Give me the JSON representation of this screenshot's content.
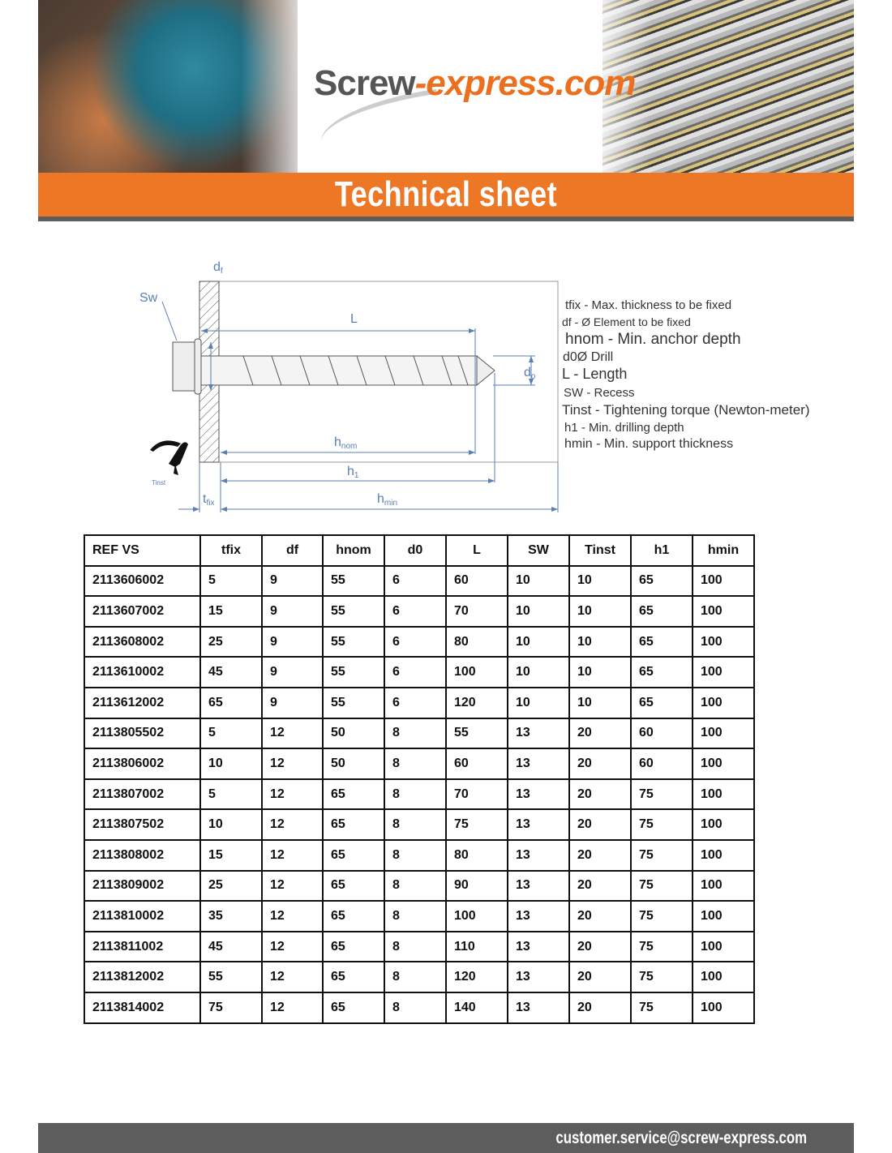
{
  "header": {
    "logo_main": "Screw",
    "logo_accent": "-express.com",
    "title": "Technical sheet"
  },
  "diagram": {
    "labels": {
      "df": "d",
      "df_sub": "f",
      "sw": "Sw",
      "L": "L",
      "d0": "d",
      "d0_sub": "o",
      "hnom": "h",
      "hnom_sub": "nom",
      "h1": "h",
      "h1_sub": "1",
      "hmin": "h",
      "hmin_sub": "min",
      "tfix": "t",
      "tfix_sub": "fix",
      "tinst": "Tinst"
    },
    "icons": [
      "torque-wrench-icon"
    ]
  },
  "legend": [
    "tfix - Max. thickness to be fixed",
    "df - Ø Element to be fixed",
    "hnom - Min. anchor depth",
    "d0Ø Drill",
    "L - Length",
    "SW - Recess",
    "Tinst - Tightening torque (Newton-meter)",
    "h1 - Min. drilling depth",
    "hmin - Min. support thickness"
  ],
  "table": {
    "headers": [
      "REF VS",
      "tfix",
      "df",
      "hnom",
      "d0",
      "L",
      "SW",
      "Tinst",
      "h1",
      "hmin"
    ],
    "rows": [
      [
        "2113606002",
        "5",
        "9",
        "55",
        "6",
        "60",
        "10",
        "10",
        "65",
        "100"
      ],
      [
        "2113607002",
        "15",
        "9",
        "55",
        "6",
        "70",
        "10",
        "10",
        "65",
        "100"
      ],
      [
        "2113608002",
        "25",
        "9",
        "55",
        "6",
        "80",
        "10",
        "10",
        "65",
        "100"
      ],
      [
        "2113610002",
        "45",
        "9",
        "55",
        "6",
        "100",
        "10",
        "10",
        "65",
        "100"
      ],
      [
        "2113612002",
        "65",
        "9",
        "55",
        "6",
        "120",
        "10",
        "10",
        "65",
        "100"
      ],
      [
        "2113805502",
        "5",
        "12",
        "50",
        "8",
        "55",
        "13",
        "20",
        "60",
        "100"
      ],
      [
        "2113806002",
        "10",
        "12",
        "50",
        "8",
        "60",
        "13",
        "20",
        "60",
        "100"
      ],
      [
        "2113807002",
        "5",
        "12",
        "65",
        "8",
        "70",
        "13",
        "20",
        "75",
        "100"
      ],
      [
        "2113807502",
        "10",
        "12",
        "65",
        "8",
        "75",
        "13",
        "20",
        "75",
        "100"
      ],
      [
        "2113808002",
        "15",
        "12",
        "65",
        "8",
        "80",
        "13",
        "20",
        "75",
        "100"
      ],
      [
        "2113809002",
        "25",
        "12",
        "65",
        "8",
        "90",
        "13",
        "20",
        "75",
        "100"
      ],
      [
        "2113810002",
        "35",
        "12",
        "65",
        "8",
        "100",
        "13",
        "20",
        "75",
        "100"
      ],
      [
        "2113811002",
        "45",
        "12",
        "65",
        "8",
        "110",
        "13",
        "20",
        "75",
        "100"
      ],
      [
        "2113812002",
        "55",
        "12",
        "65",
        "8",
        "120",
        "13",
        "20",
        "75",
        "100"
      ],
      [
        "2113814002",
        "75",
        "12",
        "65",
        "8",
        "140",
        "13",
        "20",
        "75",
        "100"
      ]
    ]
  },
  "footer": {
    "email": "customer.service@screw-express.com"
  },
  "colors": {
    "orange": "#ee7726",
    "grey": "#5d5d5d",
    "diagram_blue": "#5a7fb5"
  }
}
